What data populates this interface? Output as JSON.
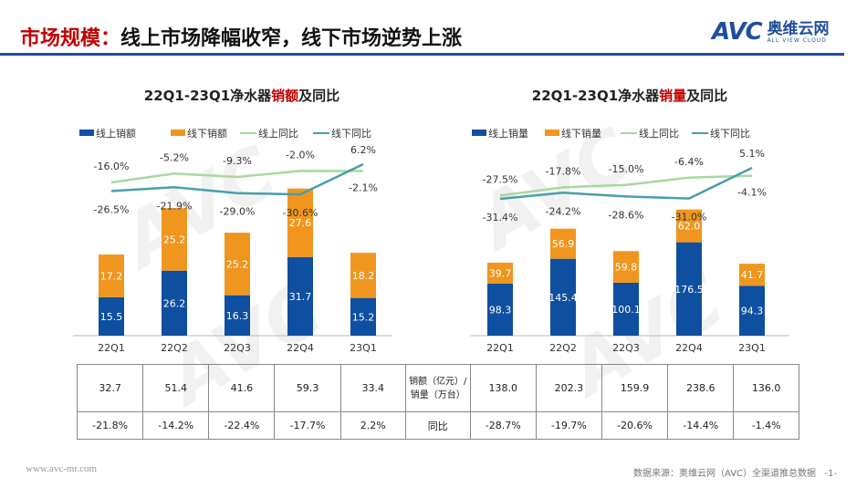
{
  "header": {
    "title_prefix": "市场规模：",
    "title_rest": "线上市场降幅收窄，线下市场逆势上涨",
    "logo_text": "AVC",
    "logo_cn": "奥维云网",
    "logo_en": "ALL VIEW CLOUD"
  },
  "colors": {
    "online": "#0e4fa0",
    "offline": "#f0961f",
    "online_yoy": "#a8d8a0",
    "offline_yoy": "#4a9ea8",
    "accent": "#c00000"
  },
  "chart_data": [
    {
      "type": "bar",
      "title_pre": "22Q1-23Q1净水器",
      "title_hl": "销额",
      "title_post": "及同比",
      "categories": [
        "22Q1",
        "22Q2",
        "22Q3",
        "22Q4",
        "23Q1"
      ],
      "series": [
        {
          "name": "线上销额",
          "values": [
            15.5,
            26.2,
            16.3,
            31.7,
            15.2
          ]
        },
        {
          "name": "线下销额",
          "values": [
            17.2,
            25.2,
            25.2,
            27.6,
            18.2
          ]
        }
      ],
      "lines": [
        {
          "name": "线上同比",
          "values": [
            -16.0,
            -5.2,
            -9.3,
            -2.0,
            -2.1
          ]
        },
        {
          "name": "线下同比",
          "values": [
            -26.5,
            -21.9,
            -29.0,
            -30.6,
            6.2
          ]
        }
      ]
    },
    {
      "type": "bar",
      "title_pre": "22Q1-23Q1净水器",
      "title_hl": "销量",
      "title_post": "及同比",
      "categories": [
        "22Q1",
        "22Q2",
        "22Q3",
        "22Q4",
        "23Q1"
      ],
      "series": [
        {
          "name": "线上销量",
          "values": [
            98.3,
            145.4,
            100.1,
            176.5,
            94.3
          ]
        },
        {
          "name": "线下销量",
          "values": [
            39.7,
            56.9,
            59.8,
            62.0,
            41.7
          ]
        }
      ],
      "lines": [
        {
          "name": "线上同比",
          "values": [
            -27.5,
            -17.8,
            -15.0,
            -6.4,
            -4.1
          ]
        },
        {
          "name": "线下同比",
          "values": [
            -31.4,
            -24.2,
            -28.6,
            -31.0,
            5.1
          ]
        }
      ]
    }
  ],
  "table": {
    "row1": [
      "32.7",
      "51.4",
      "41.6",
      "59.3",
      "33.4",
      "销额（亿元）/\n销量（万台）",
      "138.0",
      "202.3",
      "159.9",
      "238.6",
      "136.0"
    ],
    "row2": [
      "-21.8%",
      "-14.2%",
      "-22.4%",
      "-17.7%",
      "2.2%",
      "同比",
      "-28.7%",
      "-19.7%",
      "-20.6%",
      "-14.4%",
      "-1.4%"
    ]
  },
  "footer": {
    "url": "www.avc-mr.com",
    "source": "数据来源：奥维云网（AVC）全渠道推总数据",
    "page": "-1-"
  }
}
